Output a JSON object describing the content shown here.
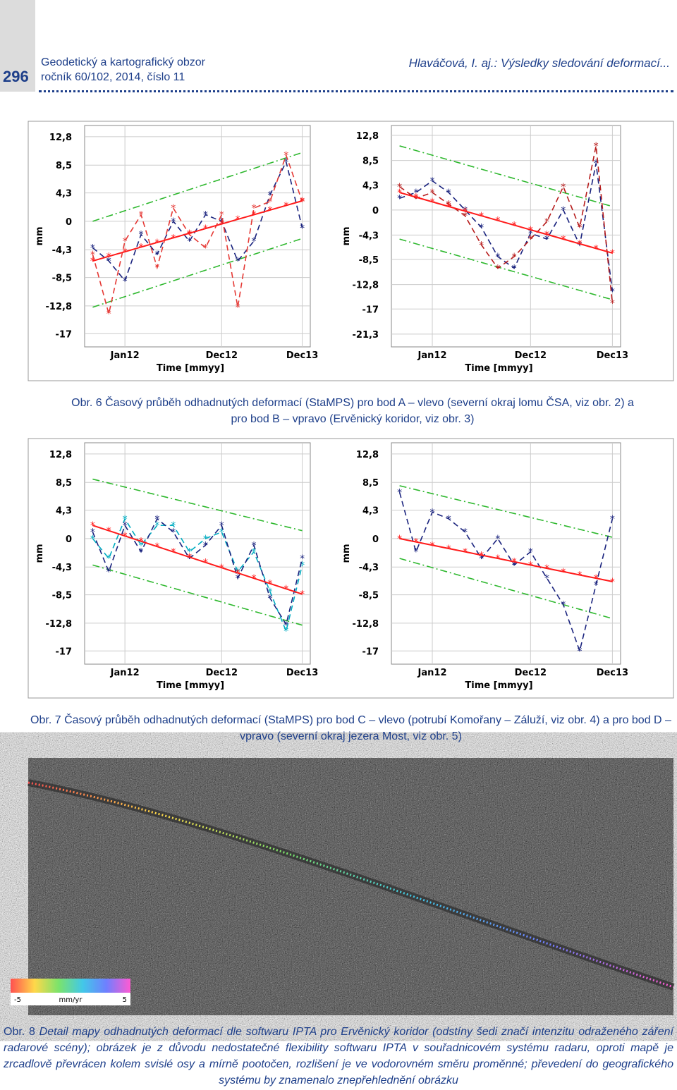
{
  "header": {
    "page_number": "296",
    "journal": "Geodetický a kartografický obzor",
    "issue": "ročník 60/102, 2014, číslo 11",
    "running_title": "Hlaváčová, I. aj.: Výsledky sledování deformací..."
  },
  "figures": [
    {
      "charts": [
        {
          "type": "line",
          "ylabel": "mm",
          "xlabel": "Time [mmyy]",
          "categories": [
            null,
            null,
            "Jan12",
            null,
            null,
            null,
            null,
            null,
            "Dec12",
            null,
            null,
            null,
            null,
            "Dec13"
          ],
          "ylim": [
            -19,
            14.5
          ],
          "yticks": [
            {
              "value": 12.8,
              "label": "12,8"
            },
            {
              "value": 8.5,
              "label": "8,5"
            },
            {
              "value": 4.3,
              "label": "4,3"
            },
            0,
            {
              "value": -4.3,
              "label": "-4,3"
            },
            {
              "value": -8.5,
              "label": "-8,5"
            },
            {
              "value": -12.8,
              "label": "-12,8"
            },
            -17
          ],
          "series": [
            {
              "color": "#2eb82e",
              "style": "dashdot",
              "values": [
                0,
                0.8,
                1.6,
                2.4,
                3.2,
                4,
                4.8,
                5.6,
                6.4,
                7.2,
                8,
                8.8,
                9.6,
                10.4
              ]
            },
            {
              "color": "#2eb82e",
              "style": "dashdot",
              "values": [
                -13,
                -12.2,
                -11.4,
                -10.6,
                -9.8,
                -9,
                -8.2,
                -7.4,
                -6.6,
                -5.8,
                -5,
                -4.2,
                -3.4,
                -2.6
              ]
            },
            {
              "color": "#1a237e",
              "style": "dashed",
              "values": [
                -4,
                -6,
                -9,
                -2,
                -5,
                0,
                -3,
                1,
                0,
                -6,
                -3,
                4,
                9,
                -1
              ]
            },
            {
              "color": "#e53935",
              "style": "dashed",
              "values": [
                -5,
                -14,
                -3,
                1,
                -7,
                2,
                -2,
                -4,
                1,
                -13,
                2,
                3,
                10,
                3
              ]
            },
            {
              "color": "#ff1a1a",
              "style": "solid",
              "values": [
                -6,
                -5.3,
                -4.6,
                -3.9,
                -3.2,
                -2.5,
                -1.8,
                -1.1,
                -0.4,
                0.3,
                1,
                1.7,
                2.4,
                3.1
              ]
            }
          ]
        },
        {
          "type": "line",
          "ylabel": "mm",
          "xlabel": "Time [mmyy]",
          "categories": [
            null,
            null,
            "Jan12",
            null,
            null,
            null,
            null,
            null,
            "Dec12",
            null,
            null,
            null,
            null,
            "Dec13"
          ],
          "ylim": [
            -23.5,
            14.5
          ],
          "yticks": [
            {
              "value": 12.8,
              "label": "12,8"
            },
            {
              "value": 8.5,
              "label": "8,5"
            },
            {
              "value": 4.3,
              "label": "4,3"
            },
            0,
            {
              "value": -4.3,
              "label": "-4,3"
            },
            {
              "value": -8.5,
              "label": "-8,5"
            },
            {
              "value": -12.8,
              "label": "-12,8"
            },
            -17,
            {
              "value": -21.3,
              "label": "-21,3"
            }
          ],
          "series": [
            {
              "color": "#2eb82e",
              "style": "dashdot",
              "values": [
                11,
                10.2,
                9.4,
                8.6,
                7.8,
                7,
                6.2,
                5.4,
                4.6,
                3.8,
                3,
                2.2,
                1.4,
                0.6
              ]
            },
            {
              "color": "#2eb82e",
              "style": "dashdot",
              "values": [
                -5,
                -5.8,
                -6.6,
                -7.4,
                -8.2,
                -9,
                -9.8,
                -10.6,
                -11.4,
                -12.2,
                -13,
                -13.8,
                -14.6,
                -15.4
              ]
            },
            {
              "color": "#1a237e",
              "style": "dashed",
              "values": [
                2,
                3,
                5,
                3,
                0,
                -3,
                -8,
                -10,
                -4,
                -5,
                0,
                -6,
                8,
                -14
              ]
            },
            {
              "color": "#b71c1c",
              "style": "dashed",
              "values": [
                4,
                2,
                3,
                1,
                -1,
                -6,
                -10,
                -8,
                -5,
                -2,
                4,
                -3,
                11,
                -16
              ]
            },
            {
              "color": "#ff1a1a",
              "style": "solid",
              "values": [
                3,
                2.2,
                1.4,
                0.6,
                -0.2,
                -1,
                -1.8,
                -2.6,
                -3.4,
                -4.2,
                -5,
                -5.8,
                -6.6,
                -7.4
              ]
            }
          ]
        }
      ],
      "caption": {
        "label": "Obr. 6",
        "text": "Časový průběh odhadnutých deformací (StaMPS) pro bod A – vlevo (severní okraj lomu ČSA, viz obr. 2) a pro bod B – vpravo (Ervěnický koridor, viz obr. 3)"
      }
    },
    {
      "charts": [
        {
          "type": "line",
          "ylabel": "mm",
          "xlabel": "Time [mmyy]",
          "categories": [
            null,
            null,
            "Jan12",
            null,
            null,
            null,
            null,
            null,
            "Dec12",
            null,
            null,
            null,
            null,
            "Dec13"
          ],
          "ylim": [
            -19,
            14.5
          ],
          "yticks": [
            {
              "value": 12.8,
              "label": "12,8"
            },
            {
              "value": 8.5,
              "label": "8,5"
            },
            {
              "value": 4.3,
              "label": "4,3"
            },
            0,
            {
              "value": -4.3,
              "label": "-4,3"
            },
            {
              "value": -8.5,
              "label": "-8,5"
            },
            {
              "value": -12.8,
              "label": "-12,8"
            },
            -17
          ],
          "series": [
            {
              "color": "#2eb82e",
              "style": "dashdot",
              "values": [
                9,
                8.4,
                7.8,
                7.2,
                6.6,
                6,
                5.4,
                4.8,
                4.2,
                3.6,
                3,
                2.4,
                1.8,
                1.2
              ]
            },
            {
              "color": "#2eb82e",
              "style": "dashdot",
              "values": [
                -4,
                -4.7,
                -5.4,
                -6.1,
                -6.8,
                -7.5,
                -8.2,
                -8.9,
                -9.6,
                -10.3,
                -11,
                -11.7,
                -12.4,
                -13.1
              ]
            },
            {
              "color": "#00acc1",
              "style": "dashed",
              "values": [
                0,
                -3,
                3,
                -1,
                2,
                2,
                -2,
                0,
                1,
                -5,
                -2,
                -8,
                -14,
                -4
              ]
            },
            {
              "color": "#1a237e",
              "style": "dashed",
              "values": [
                1,
                -5,
                2,
                -2,
                3,
                1,
                -3,
                -1,
                2,
                -6,
                -1,
                -9,
                -13,
                -3
              ]
            },
            {
              "color": "#ff1a1a",
              "style": "solid",
              "values": [
                2,
                1.2,
                0.4,
                -0.4,
                -1.2,
                -2,
                -2.8,
                -3.6,
                -4.4,
                -5.2,
                -6,
                -6.8,
                -7.6,
                -8.4
              ]
            }
          ]
        },
        {
          "type": "line",
          "ylabel": "mm",
          "xlabel": "Time [mmyy]",
          "categories": [
            null,
            null,
            "Jan12",
            null,
            null,
            null,
            null,
            null,
            "Dec12",
            null,
            null,
            null,
            null,
            "Dec13"
          ],
          "ylim": [
            -19,
            14.5
          ],
          "yticks": [
            {
              "value": 12.8,
              "label": "12,8"
            },
            {
              "value": 8.5,
              "label": "8,5"
            },
            {
              "value": 4.3,
              "label": "4,3"
            },
            0,
            {
              "value": -4.3,
              "label": "-4,3"
            },
            {
              "value": -8.5,
              "label": "-8,5"
            },
            {
              "value": -12.8,
              "label": "-12,8"
            },
            -17
          ],
          "series": [
            {
              "color": "#2eb82e",
              "style": "dashdot",
              "values": [
                8,
                7.4,
                6.8,
                6.2,
                5.6,
                5,
                4.4,
                3.8,
                3.2,
                2.6,
                2,
                1.4,
                0.8,
                0.2
              ]
            },
            {
              "color": "#2eb82e",
              "style": "dashdot",
              "values": [
                -3,
                -3.7,
                -4.4,
                -5.1,
                -5.8,
                -6.5,
                -7.2,
                -7.9,
                -8.6,
                -9.3,
                -10,
                -10.7,
                -11.4,
                -12.1
              ]
            },
            {
              "color": "#1a237e",
              "style": "dashed",
              "values": [
                7,
                -2,
                4,
                3,
                1,
                -3,
                0,
                -4,
                -2,
                -6,
                -10,
                -17,
                -7,
                3
              ]
            },
            {
              "color": "#ff1a1a",
              "style": "solid",
              "values": [
                0,
                -0.5,
                -1,
                -1.5,
                -2,
                -2.5,
                -3,
                -3.5,
                -4,
                -4.5,
                -5,
                -5.5,
                -6,
                -6.5
              ]
            }
          ]
        }
      ],
      "caption": {
        "label": "Obr. 7",
        "text": "Časový průběh odhadnutých deformací (StaMPS) pro bod C – vlevo (potrubí Komořany – Záluží, viz obr. 4) a pro bod D – vpravo (severní okraj jezera Most, viz obr. 5)"
      }
    }
  ],
  "map": {
    "legend": {
      "min": -5,
      "max": 5,
      "unit": "mm/yr"
    },
    "caption": {
      "label": "Obr. 8",
      "text": "Detail mapy odhadnutých deformací dle softwaru IPTA pro Ervěnický koridor (odstíny šedi značí intenzitu odraženého záření radarové scény); obrázek je z důvodu nedostatečné flexibility softwaru IPTA v souřadnicovém systému radaru, oproti mapě je zrcadlově převrácen kolem svislé osy a mírně pootočen, rozlišení je ve vodorovném směru proměnné; převedení do geografického systému by znamenalo znepřehlednění obrázku"
    }
  }
}
